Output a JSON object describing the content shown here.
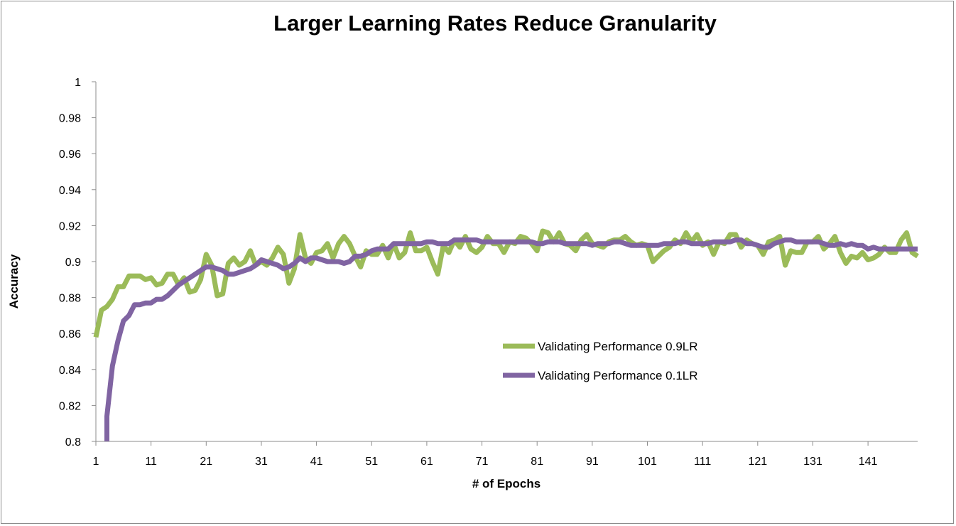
{
  "chart_data": {
    "type": "line",
    "title": "Larger Learning Rates Reduce Granularity",
    "xlabel": "# of Epochs",
    "ylabel": "Accuracy",
    "xlim": [
      1,
      150
    ],
    "ylim": [
      0.8,
      1
    ],
    "x_tick_labels": [
      "1",
      "11",
      "21",
      "31",
      "41",
      "51",
      "61",
      "71",
      "81",
      "91",
      "101",
      "111",
      "121",
      "131",
      "141"
    ],
    "x_tick_values": [
      1,
      11,
      21,
      31,
      41,
      51,
      61,
      71,
      81,
      91,
      101,
      111,
      121,
      131,
      141
    ],
    "y_tick_labels": [
      "0.8",
      "0.82",
      "0.84",
      "0.86",
      "0.88",
      "0.9",
      "0.92",
      "0.94",
      "0.96",
      "0.98",
      "1"
    ],
    "y_tick_values": [
      0.8,
      0.82,
      0.84,
      0.86,
      0.88,
      0.9,
      0.92,
      0.94,
      0.96,
      0.98,
      1
    ],
    "grid": false,
    "legend_position": "center-right",
    "series": [
      {
        "name": "Validating Performance 0.9LR",
        "color": "#9bbb59",
        "points": [
          [
            1,
            0.858
          ],
          [
            2,
            0.873
          ],
          [
            3,
            0.875
          ],
          [
            4,
            0.879
          ],
          [
            5,
            0.886
          ],
          [
            6,
            0.886
          ],
          [
            7,
            0.892
          ],
          [
            8,
            0.892
          ],
          [
            9,
            0.892
          ],
          [
            10,
            0.89
          ],
          [
            11,
            0.891
          ],
          [
            12,
            0.887
          ],
          [
            13,
            0.888
          ],
          [
            14,
            0.893
          ],
          [
            15,
            0.893
          ],
          [
            16,
            0.887
          ],
          [
            17,
            0.891
          ],
          [
            18,
            0.883
          ],
          [
            19,
            0.884
          ],
          [
            20,
            0.89
          ],
          [
            21,
            0.904
          ],
          [
            22,
            0.898
          ],
          [
            23,
            0.881
          ],
          [
            24,
            0.882
          ],
          [
            25,
            0.899
          ],
          [
            26,
            0.902
          ],
          [
            27,
            0.898
          ],
          [
            28,
            0.9
          ],
          [
            29,
            0.906
          ],
          [
            30,
            0.898
          ],
          [
            31,
            0.9
          ],
          [
            32,
            0.898
          ],
          [
            33,
            0.902
          ],
          [
            34,
            0.908
          ],
          [
            35,
            0.904
          ],
          [
            36,
            0.888
          ],
          [
            37,
            0.896
          ],
          [
            38,
            0.915
          ],
          [
            39,
            0.902
          ],
          [
            40,
            0.899
          ],
          [
            41,
            0.905
          ],
          [
            42,
            0.906
          ],
          [
            43,
            0.91
          ],
          [
            44,
            0.902
          ],
          [
            45,
            0.91
          ],
          [
            46,
            0.914
          ],
          [
            47,
            0.91
          ],
          [
            48,
            0.903
          ],
          [
            49,
            0.897
          ],
          [
            50,
            0.906
          ],
          [
            51,
            0.904
          ],
          [
            52,
            0.904
          ],
          [
            53,
            0.909
          ],
          [
            54,
            0.902
          ],
          [
            55,
            0.91
          ],
          [
            56,
            0.902
          ],
          [
            57,
            0.905
          ],
          [
            58,
            0.916
          ],
          [
            59,
            0.906
          ],
          [
            60,
            0.906
          ],
          [
            61,
            0.908
          ],
          [
            62,
            0.9
          ],
          [
            63,
            0.893
          ],
          [
            64,
            0.909
          ],
          [
            65,
            0.905
          ],
          [
            66,
            0.912
          ],
          [
            67,
            0.908
          ],
          [
            68,
            0.914
          ],
          [
            69,
            0.907
          ],
          [
            70,
            0.905
          ],
          [
            71,
            0.908
          ],
          [
            72,
            0.914
          ],
          [
            73,
            0.91
          ],
          [
            74,
            0.91
          ],
          [
            75,
            0.905
          ],
          [
            76,
            0.911
          ],
          [
            77,
            0.91
          ],
          [
            78,
            0.914
          ],
          [
            79,
            0.913
          ],
          [
            80,
            0.91
          ],
          [
            81,
            0.906
          ],
          [
            82,
            0.917
          ],
          [
            83,
            0.916
          ],
          [
            84,
            0.911
          ],
          [
            85,
            0.916
          ],
          [
            86,
            0.91
          ],
          [
            87,
            0.909
          ],
          [
            88,
            0.906
          ],
          [
            89,
            0.912
          ],
          [
            90,
            0.915
          ],
          [
            91,
            0.91
          ],
          [
            92,
            0.909
          ],
          [
            93,
            0.908
          ],
          [
            94,
            0.911
          ],
          [
            95,
            0.912
          ],
          [
            96,
            0.912
          ],
          [
            97,
            0.914
          ],
          [
            98,
            0.911
          ],
          [
            99,
            0.909
          ],
          [
            100,
            0.91
          ],
          [
            101,
            0.909
          ],
          [
            102,
            0.9
          ],
          [
            103,
            0.903
          ],
          [
            104,
            0.906
          ],
          [
            105,
            0.908
          ],
          [
            106,
            0.912
          ],
          [
            107,
            0.91
          ],
          [
            108,
            0.916
          ],
          [
            109,
            0.911
          ],
          [
            110,
            0.915
          ],
          [
            111,
            0.909
          ],
          [
            112,
            0.911
          ],
          [
            113,
            0.904
          ],
          [
            114,
            0.911
          ],
          [
            115,
            0.91
          ],
          [
            116,
            0.915
          ],
          [
            117,
            0.915
          ],
          [
            118,
            0.908
          ],
          [
            119,
            0.912
          ],
          [
            120,
            0.91
          ],
          [
            121,
            0.909
          ],
          [
            122,
            0.904
          ],
          [
            123,
            0.911
          ],
          [
            124,
            0.912
          ],
          [
            125,
            0.914
          ],
          [
            126,
            0.898
          ],
          [
            127,
            0.906
          ],
          [
            128,
            0.905
          ],
          [
            129,
            0.905
          ],
          [
            130,
            0.911
          ],
          [
            131,
            0.911
          ],
          [
            132,
            0.914
          ],
          [
            133,
            0.907
          ],
          [
            134,
            0.91
          ],
          [
            135,
            0.914
          ],
          [
            136,
            0.905
          ],
          [
            137,
            0.899
          ],
          [
            138,
            0.903
          ],
          [
            139,
            0.902
          ],
          [
            140,
            0.905
          ],
          [
            141,
            0.901
          ],
          [
            142,
            0.902
          ],
          [
            143,
            0.904
          ],
          [
            144,
            0.908
          ],
          [
            145,
            0.905
          ],
          [
            146,
            0.905
          ],
          [
            147,
            0.912
          ],
          [
            148,
            0.916
          ],
          [
            149,
            0.905
          ],
          [
            150,
            0.903
          ]
        ]
      },
      {
        "name": "Validating Performance 0.1LR",
        "color": "#8064a2",
        "points": [
          [
            3,
            0.8
          ],
          [
            3,
            0.814
          ],
          [
            4,
            0.842
          ],
          [
            5,
            0.856
          ],
          [
            6,
            0.867
          ],
          [
            7,
            0.87
          ],
          [
            8,
            0.876
          ],
          [
            9,
            0.876
          ],
          [
            10,
            0.877
          ],
          [
            11,
            0.877
          ],
          [
            12,
            0.879
          ],
          [
            13,
            0.879
          ],
          [
            14,
            0.881
          ],
          [
            15,
            0.884
          ],
          [
            16,
            0.887
          ],
          [
            17,
            0.889
          ],
          [
            18,
            0.891
          ],
          [
            19,
            0.893
          ],
          [
            20,
            0.895
          ],
          [
            21,
            0.897
          ],
          [
            22,
            0.897
          ],
          [
            23,
            0.896
          ],
          [
            24,
            0.895
          ],
          [
            25,
            0.893
          ],
          [
            26,
            0.893
          ],
          [
            27,
            0.894
          ],
          [
            28,
            0.895
          ],
          [
            29,
            0.896
          ],
          [
            30,
            0.898
          ],
          [
            31,
            0.901
          ],
          [
            32,
            0.9
          ],
          [
            33,
            0.899
          ],
          [
            34,
            0.898
          ],
          [
            35,
            0.896
          ],
          [
            36,
            0.897
          ],
          [
            37,
            0.899
          ],
          [
            38,
            0.902
          ],
          [
            39,
            0.9
          ],
          [
            40,
            0.902
          ],
          [
            41,
            0.902
          ],
          [
            42,
            0.901
          ],
          [
            43,
            0.9
          ],
          [
            44,
            0.9
          ],
          [
            45,
            0.9
          ],
          [
            46,
            0.899
          ],
          [
            47,
            0.9
          ],
          [
            48,
            0.903
          ],
          [
            49,
            0.903
          ],
          [
            50,
            0.904
          ],
          [
            51,
            0.906
          ],
          [
            52,
            0.907
          ],
          [
            53,
            0.907
          ],
          [
            54,
            0.907
          ],
          [
            55,
            0.91
          ],
          [
            56,
            0.91
          ],
          [
            57,
            0.91
          ],
          [
            58,
            0.91
          ],
          [
            59,
            0.91
          ],
          [
            60,
            0.91
          ],
          [
            61,
            0.911
          ],
          [
            62,
            0.911
          ],
          [
            63,
            0.91
          ],
          [
            64,
            0.91
          ],
          [
            65,
            0.91
          ],
          [
            66,
            0.912
          ],
          [
            67,
            0.912
          ],
          [
            68,
            0.912
          ],
          [
            69,
            0.912
          ],
          [
            70,
            0.912
          ],
          [
            71,
            0.911
          ],
          [
            72,
            0.911
          ],
          [
            73,
            0.911
          ],
          [
            74,
            0.911
          ],
          [
            75,
            0.911
          ],
          [
            76,
            0.911
          ],
          [
            77,
            0.911
          ],
          [
            78,
            0.911
          ],
          [
            79,
            0.911
          ],
          [
            80,
            0.911
          ],
          [
            81,
            0.91
          ],
          [
            82,
            0.91
          ],
          [
            83,
            0.911
          ],
          [
            84,
            0.911
          ],
          [
            85,
            0.911
          ],
          [
            86,
            0.91
          ],
          [
            87,
            0.91
          ],
          [
            88,
            0.91
          ],
          [
            89,
            0.91
          ],
          [
            90,
            0.91
          ],
          [
            91,
            0.909
          ],
          [
            92,
            0.91
          ],
          [
            93,
            0.91
          ],
          [
            94,
            0.91
          ],
          [
            95,
            0.911
          ],
          [
            96,
            0.911
          ],
          [
            97,
            0.91
          ],
          [
            98,
            0.909
          ],
          [
            99,
            0.909
          ],
          [
            100,
            0.909
          ],
          [
            101,
            0.909
          ],
          [
            102,
            0.909
          ],
          [
            103,
            0.909
          ],
          [
            104,
            0.91
          ],
          [
            105,
            0.91
          ],
          [
            106,
            0.91
          ],
          [
            107,
            0.911
          ],
          [
            108,
            0.911
          ],
          [
            109,
            0.91
          ],
          [
            110,
            0.91
          ],
          [
            111,
            0.91
          ],
          [
            112,
            0.91
          ],
          [
            113,
            0.911
          ],
          [
            114,
            0.911
          ],
          [
            115,
            0.911
          ],
          [
            116,
            0.911
          ],
          [
            117,
            0.912
          ],
          [
            118,
            0.912
          ],
          [
            119,
            0.91
          ],
          [
            120,
            0.91
          ],
          [
            121,
            0.909
          ],
          [
            122,
            0.908
          ],
          [
            123,
            0.908
          ],
          [
            124,
            0.91
          ],
          [
            125,
            0.911
          ],
          [
            126,
            0.912
          ],
          [
            127,
            0.912
          ],
          [
            128,
            0.911
          ],
          [
            129,
            0.911
          ],
          [
            130,
            0.911
          ],
          [
            131,
            0.911
          ],
          [
            132,
            0.911
          ],
          [
            133,
            0.91
          ],
          [
            134,
            0.909
          ],
          [
            135,
            0.909
          ],
          [
            136,
            0.91
          ],
          [
            137,
            0.909
          ],
          [
            138,
            0.91
          ],
          [
            139,
            0.909
          ],
          [
            140,
            0.909
          ],
          [
            141,
            0.907
          ],
          [
            142,
            0.908
          ],
          [
            143,
            0.907
          ],
          [
            144,
            0.907
          ],
          [
            145,
            0.907
          ],
          [
            146,
            0.907
          ],
          [
            147,
            0.907
          ],
          [
            148,
            0.907
          ],
          [
            149,
            0.907
          ],
          [
            150,
            0.907
          ]
        ]
      }
    ]
  }
}
